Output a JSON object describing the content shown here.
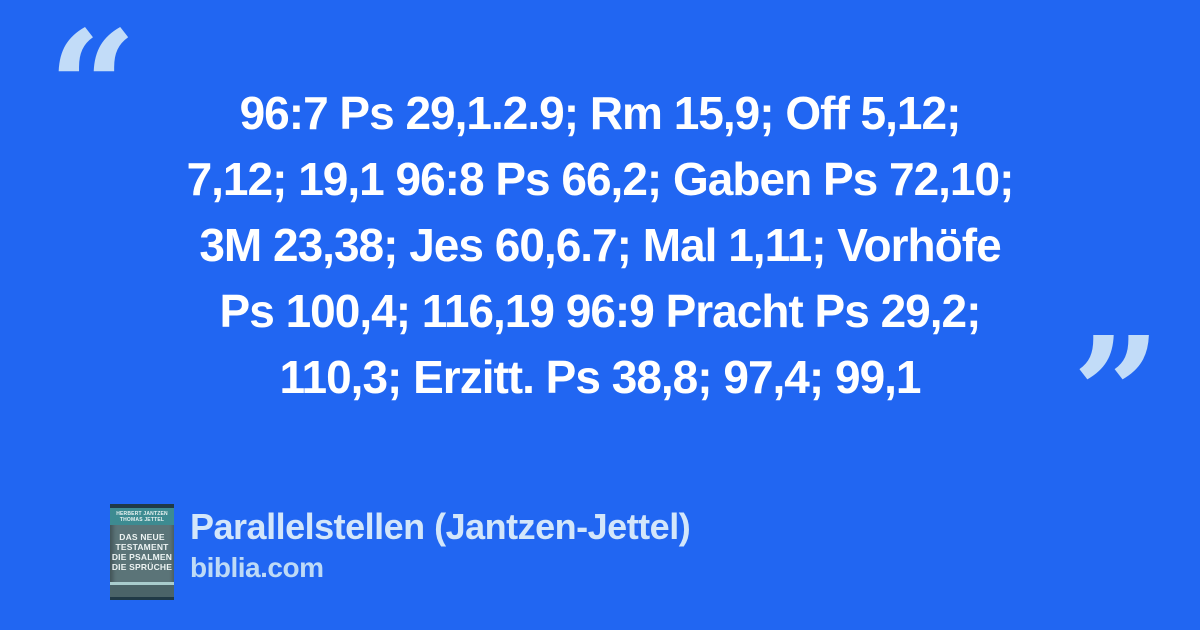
{
  "colors": {
    "background": "#2166f2",
    "quote_text": "#ffffff",
    "quote_marks": "#c2dcf8",
    "footer_title": "#d3e6fa",
    "footer_site": "#bedaf6",
    "cover_band": "#3d8b91",
    "cover_body": "#5b7478",
    "cover_stripe": "#a9cdcd",
    "cover_bottom": "#4b6468",
    "cover_edge": "#203a46"
  },
  "quote": {
    "open_mark": "“",
    "close_mark": "”",
    "lines": [
      "96:7 Ps 29,1.2.9; Rm 15,9; Off 5,12;",
      "7,12; 19,1 96:8 Ps 66,2; Gaben Ps 72,10;",
      "3M 23,38; Jes 60,6.7; Mal 1,11; Vorhöfe",
      "Ps 100,4; 116,19 96:9 Pracht Ps 29,2;",
      "110,3; Erzitt. Ps 38,8; 97,4; 99,1"
    ]
  },
  "footer": {
    "title": "Parallelstellen (Jantzen-Jettel)",
    "site": "biblia.com",
    "book_cover": {
      "authors": [
        "HERBERT JANTZEN",
        "THOMAS JETTEL"
      ],
      "title_lines": [
        "DAS NEUE",
        "TESTAMENT",
        "DIE PSALMEN",
        "DIE SPRÜCHE"
      ]
    }
  }
}
